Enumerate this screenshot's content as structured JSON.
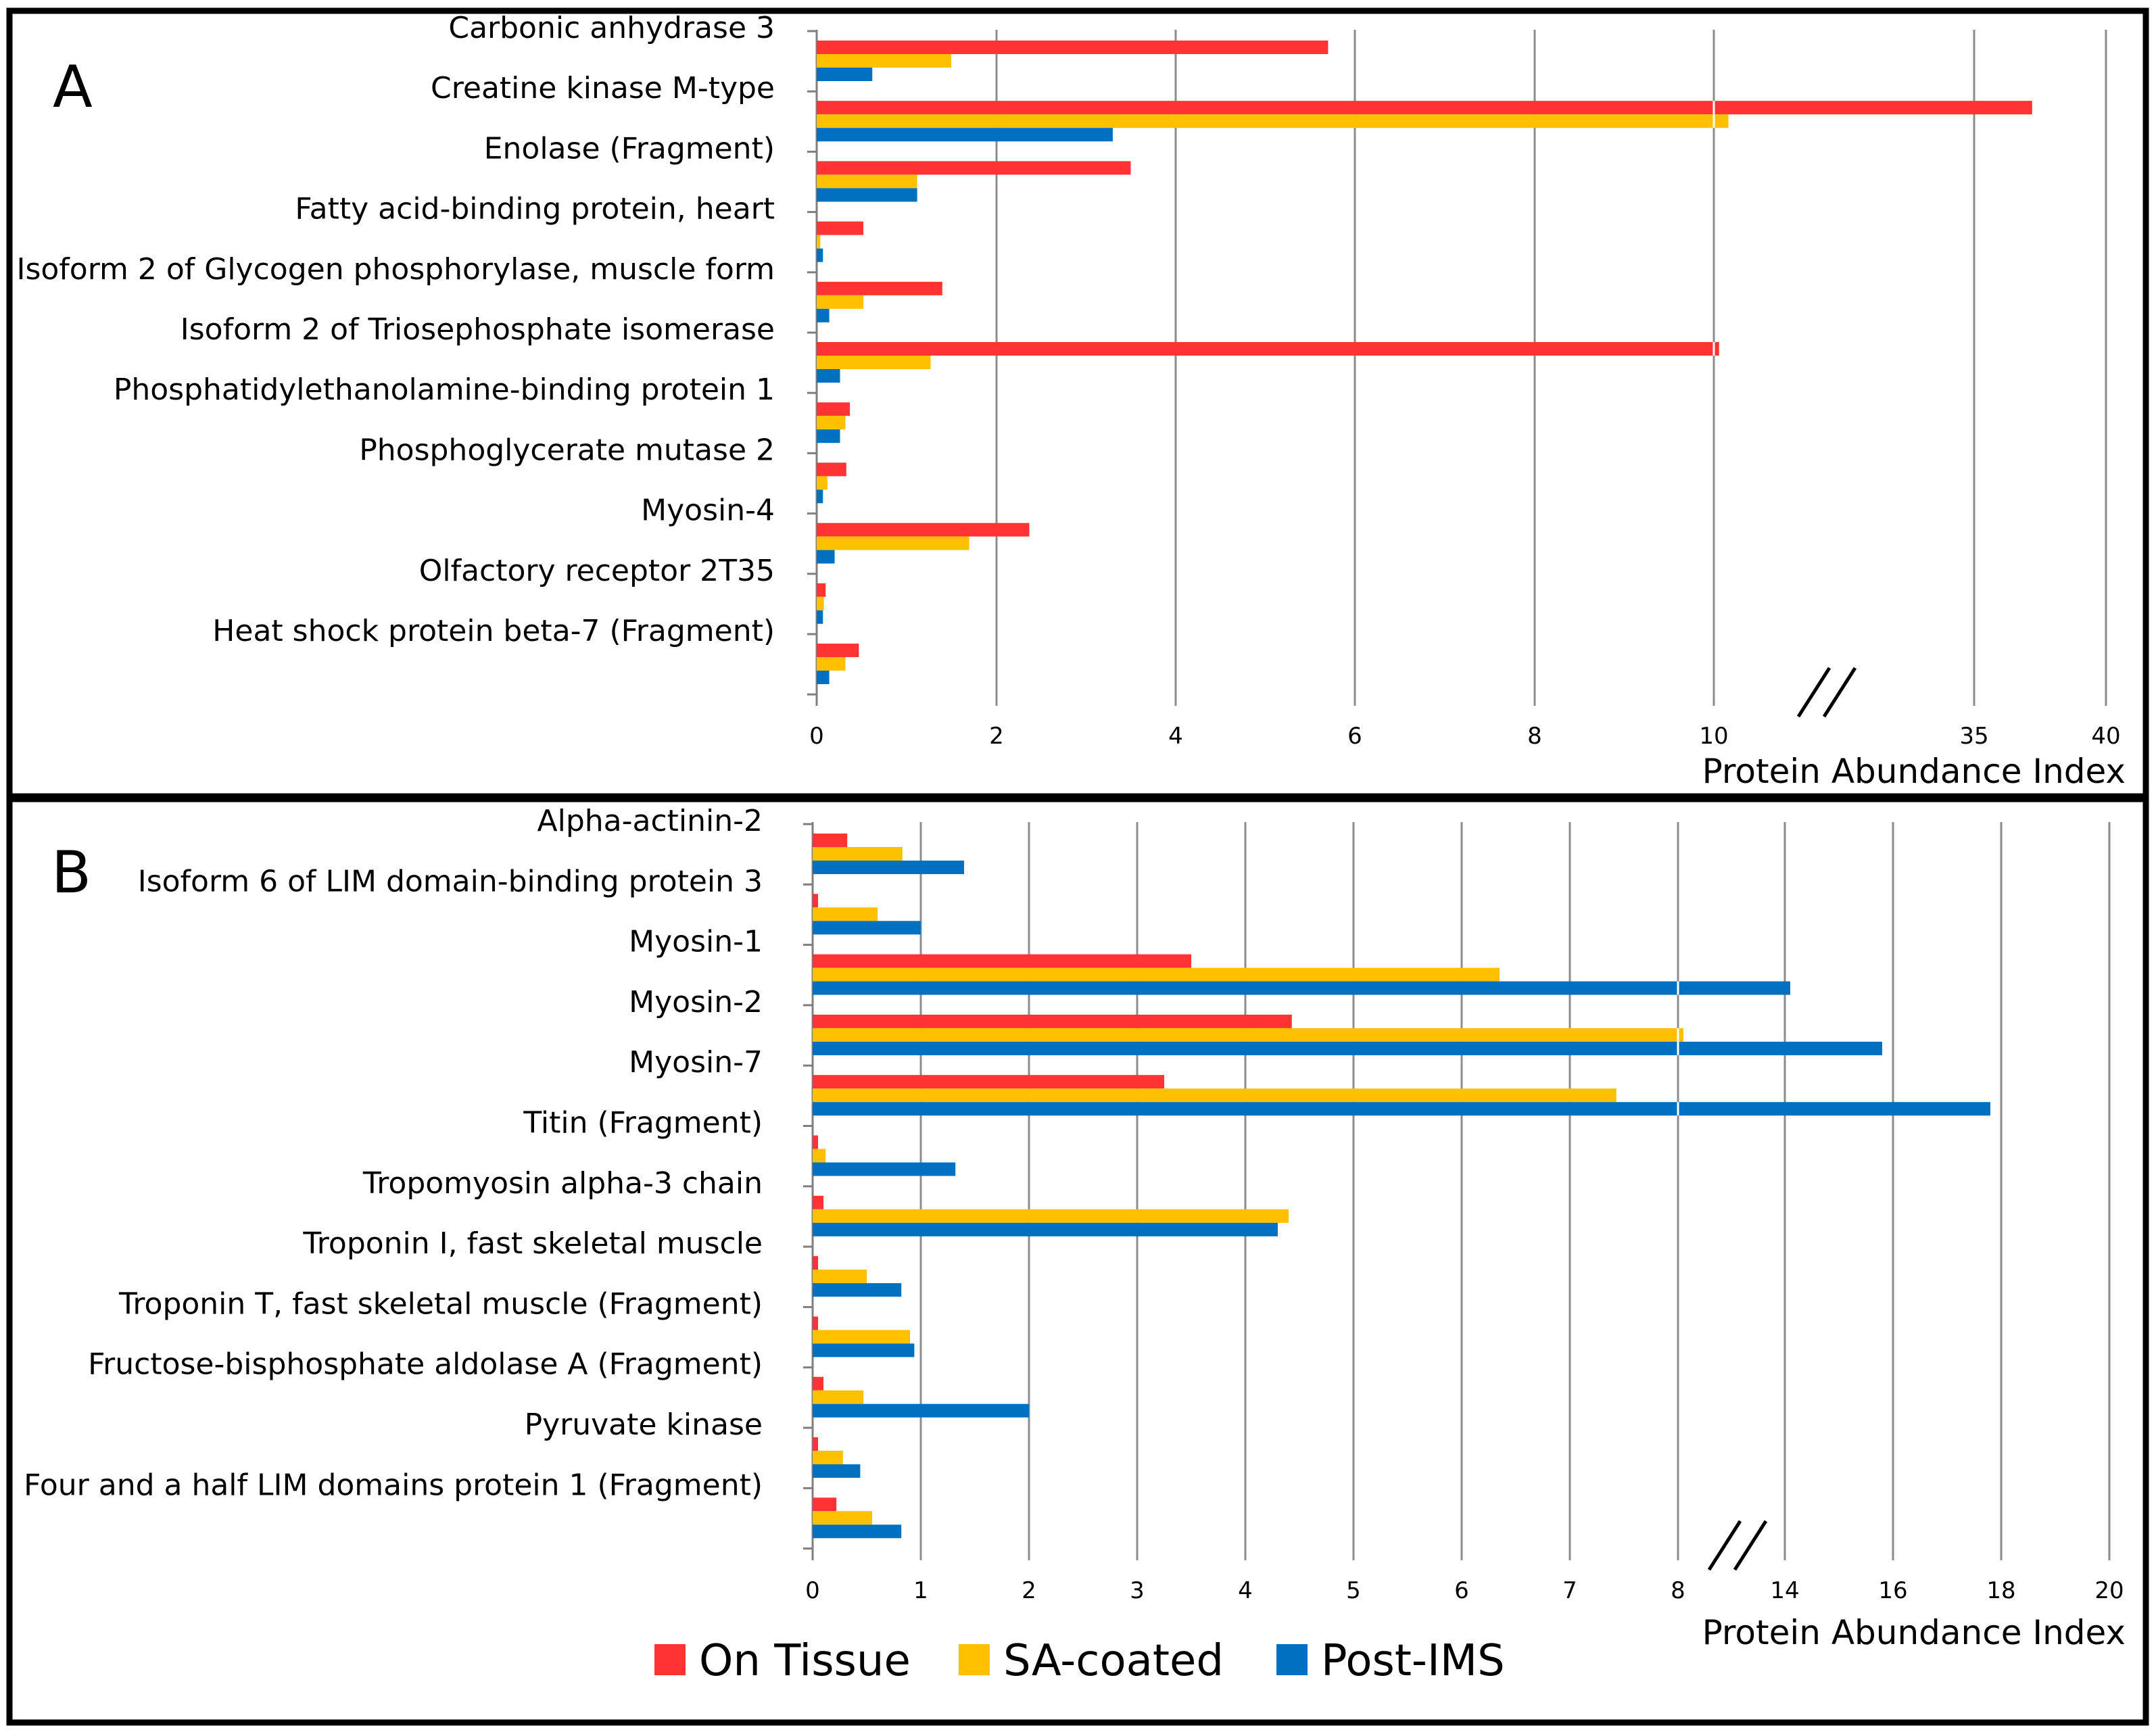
{
  "colors": {
    "on_tissue": "#FF3333",
    "sa_coated": "#FFC000",
    "post_ims": "#0070C0",
    "grid": "#8C8C8C"
  },
  "legend": {
    "on_tissue": "On Tissue",
    "sa_coated": "SA-coated",
    "post_ims": "Post-IMS"
  },
  "chart_data": [
    {
      "panel": "A",
      "type": "bar",
      "orientation": "horizontal",
      "xlabel": "Protein Abundance Index",
      "axis_break": {
        "after": 10,
        "resume": 35
      },
      "ticks": [
        "0",
        "2",
        "4",
        "6",
        "8",
        "10",
        "35",
        "40"
      ],
      "categories": [
        "Carbonic anhydrase 3",
        "Creatine kinase M-type",
        "Enolase (Fragment)",
        "Fatty acid-binding protein, heart",
        "Isoform 2 of Glycogen phosphorylase, muscle form",
        "Isoform 2 of Triosephosphate isomerase",
        "Phosphatidylethanolamine-binding protein 1",
        "Phosphoglycerate mutase 2",
        "Myosin-4",
        "Olfactory receptor 2T35",
        "Heat shock protein beta-7 (Fragment)"
      ],
      "series": [
        {
          "name": "On Tissue",
          "values": [
            5.7,
            37.2,
            3.5,
            0.52,
            1.4,
            10.5,
            0.37,
            0.33,
            2.37,
            0.1,
            0.47
          ]
        },
        {
          "name": "SA-coated",
          "values": [
            1.5,
            11.4,
            1.12,
            0.04,
            0.52,
            1.27,
            0.32,
            0.12,
            1.7,
            0.08,
            0.32
          ]
        },
        {
          "name": "Post-IMS",
          "values": [
            0.62,
            3.3,
            1.12,
            0.07,
            0.14,
            0.26,
            0.26,
            0.07,
            0.2,
            0.07,
            0.14
          ]
        }
      ]
    },
    {
      "panel": "B",
      "type": "bar",
      "orientation": "horizontal",
      "xlabel": "Protein Abundance Index",
      "axis_break": {
        "after": 8,
        "resume": 14
      },
      "ticks": [
        "0",
        "1",
        "2",
        "3",
        "4",
        "5",
        "6",
        "7",
        "8",
        "14",
        "16",
        "18",
        "20"
      ],
      "categories": [
        "Alpha-actinin-2",
        "Isoform 6 of LIM domain-binding protein 3",
        "Myosin-1",
        "Myosin-2",
        "Myosin-7",
        "Titin (Fragment)",
        "Tropomyosin alpha-3 chain",
        "Troponin I, fast skeletal muscle",
        "Troponin T, fast skeletal muscle (Fragment)",
        "Fructose-bisphosphate aldolase A (Fragment)",
        "Pyruvate kinase",
        "Four and a half LIM domains protein 1 (Fragment)"
      ],
      "series": [
        {
          "name": "On Tissue",
          "values": [
            0.32,
            0.05,
            3.5,
            4.43,
            3.25,
            0.05,
            0.1,
            0.05,
            0.05,
            0.1,
            0.05,
            0.22
          ]
        },
        {
          "name": "SA-coated",
          "values": [
            0.83,
            0.6,
            6.35,
            8.3,
            7.43,
            0.12,
            4.4,
            0.5,
            0.9,
            0.47,
            0.28,
            0.55
          ]
        },
        {
          "name": "Post-IMS",
          "values": [
            1.4,
            1.0,
            14.1,
            15.8,
            17.8,
            1.32,
            4.3,
            0.82,
            0.94,
            2.0,
            0.44,
            0.82
          ]
        }
      ]
    }
  ]
}
